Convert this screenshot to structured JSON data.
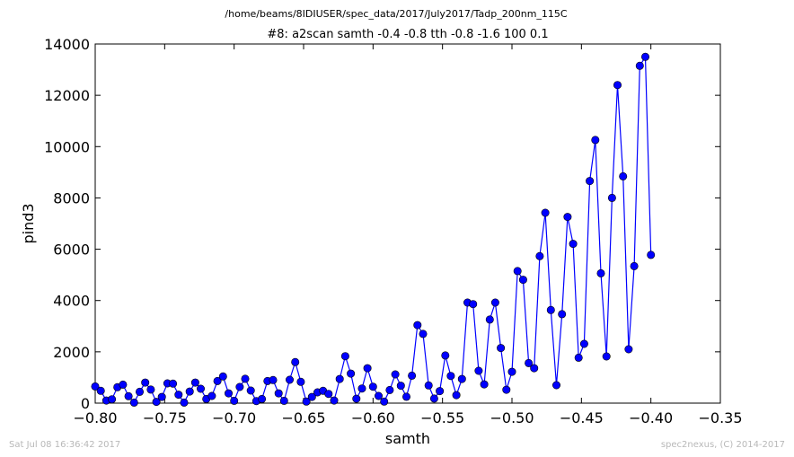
{
  "figure": {
    "suptitle": "/home/beams/8IDIUSER/spec_data/2017/July2017/Tadp_200nm_115C",
    "footer_left": "Sat Jul 08 16:36:42 2017",
    "footer_right": "spec2nexus, (C) 2014-2017"
  },
  "chart_data": {
    "type": "line",
    "title": "#8: a2scan  samth -0.4 -0.8  tth -0.8 -1.6  100 0.1",
    "xlabel": "samth",
    "ylabel": "pind3",
    "xlim": [
      -0.8,
      -0.35
    ],
    "ylim": [
      0,
      14000
    ],
    "xticks": [
      -0.8,
      -0.75,
      -0.7,
      -0.65,
      -0.6,
      -0.55,
      -0.5,
      -0.45,
      -0.4,
      -0.35
    ],
    "xtick_labels": [
      "−0.80",
      "−0.75",
      "−0.70",
      "−0.65",
      "−0.60",
      "−0.55",
      "−0.50",
      "−0.45",
      "−0.40",
      "−0.35"
    ],
    "yticks": [
      0,
      2000,
      4000,
      6000,
      8000,
      10000,
      12000,
      14000
    ],
    "ytick_labels": [
      "0",
      "2000",
      "4000",
      "6000",
      "8000",
      "10000",
      "12000",
      "14000"
    ],
    "grid": false,
    "legend": "none",
    "series_color": "#0000ff",
    "marker": "circle",
    "x": [
      -0.8,
      -0.796,
      -0.792,
      -0.788,
      -0.784,
      -0.78,
      -0.776,
      -0.772,
      -0.768,
      -0.764,
      -0.76,
      -0.756,
      -0.752,
      -0.748,
      -0.744,
      -0.74,
      -0.736,
      -0.732,
      -0.728,
      -0.724,
      -0.72,
      -0.716,
      -0.712,
      -0.708,
      -0.704,
      -0.7,
      -0.696,
      -0.692,
      -0.688,
      -0.684,
      -0.68,
      -0.676,
      -0.672,
      -0.668,
      -0.664,
      -0.66,
      -0.656,
      -0.652,
      -0.648,
      -0.644,
      -0.64,
      -0.636,
      -0.632,
      -0.628,
      -0.624,
      -0.62,
      -0.616,
      -0.612,
      -0.608,
      -0.604,
      -0.6,
      -0.596,
      -0.592,
      -0.588,
      -0.584,
      -0.58,
      -0.576,
      -0.572,
      -0.568,
      -0.564,
      -0.56,
      -0.556,
      -0.552,
      -0.548,
      -0.544,
      -0.54,
      -0.536,
      -0.532,
      -0.528,
      -0.524,
      -0.52,
      -0.516,
      -0.512,
      -0.508,
      -0.504,
      -0.5,
      -0.496,
      -0.492,
      -0.488,
      -0.484,
      -0.48,
      -0.476,
      -0.472,
      -0.468,
      -0.464,
      -0.46,
      -0.456,
      -0.452,
      -0.448,
      -0.444,
      -0.44,
      -0.436,
      -0.432,
      -0.428,
      -0.424,
      -0.42,
      -0.416,
      -0.412,
      -0.408,
      -0.404,
      -0.4
    ],
    "y": [
      650,
      480,
      100,
      150,
      620,
      720,
      270,
      20,
      440,
      800,
      530,
      50,
      240,
      770,
      760,
      330,
      20,
      450,
      800,
      560,
      160,
      280,
      860,
      1040,
      380,
      90,
      630,
      950,
      490,
      80,
      160,
      860,
      900,
      380,
      90,
      910,
      1600,
      830,
      60,
      240,
      420,
      480,
      360,
      100,
      940,
      1830,
      1150,
      170,
      570,
      1360,
      640,
      280,
      60,
      510,
      1120,
      680,
      250,
      1070,
      3040,
      2700,
      690,
      180,
      470,
      1860,
      1060,
      310,
      940,
      3920,
      3860,
      1260,
      730,
      3260,
      3920,
      2150,
      520,
      1220,
      5150,
      4810,
      1560,
      1360,
      5730,
      7420,
      3630,
      700,
      3470,
      7260,
      6210,
      1770,
      2310,
      8660,
      10260,
      5060,
      1820,
      8000,
      12400,
      8840,
      2100,
      5340,
      13150,
      13500,
      5780
    ]
  }
}
